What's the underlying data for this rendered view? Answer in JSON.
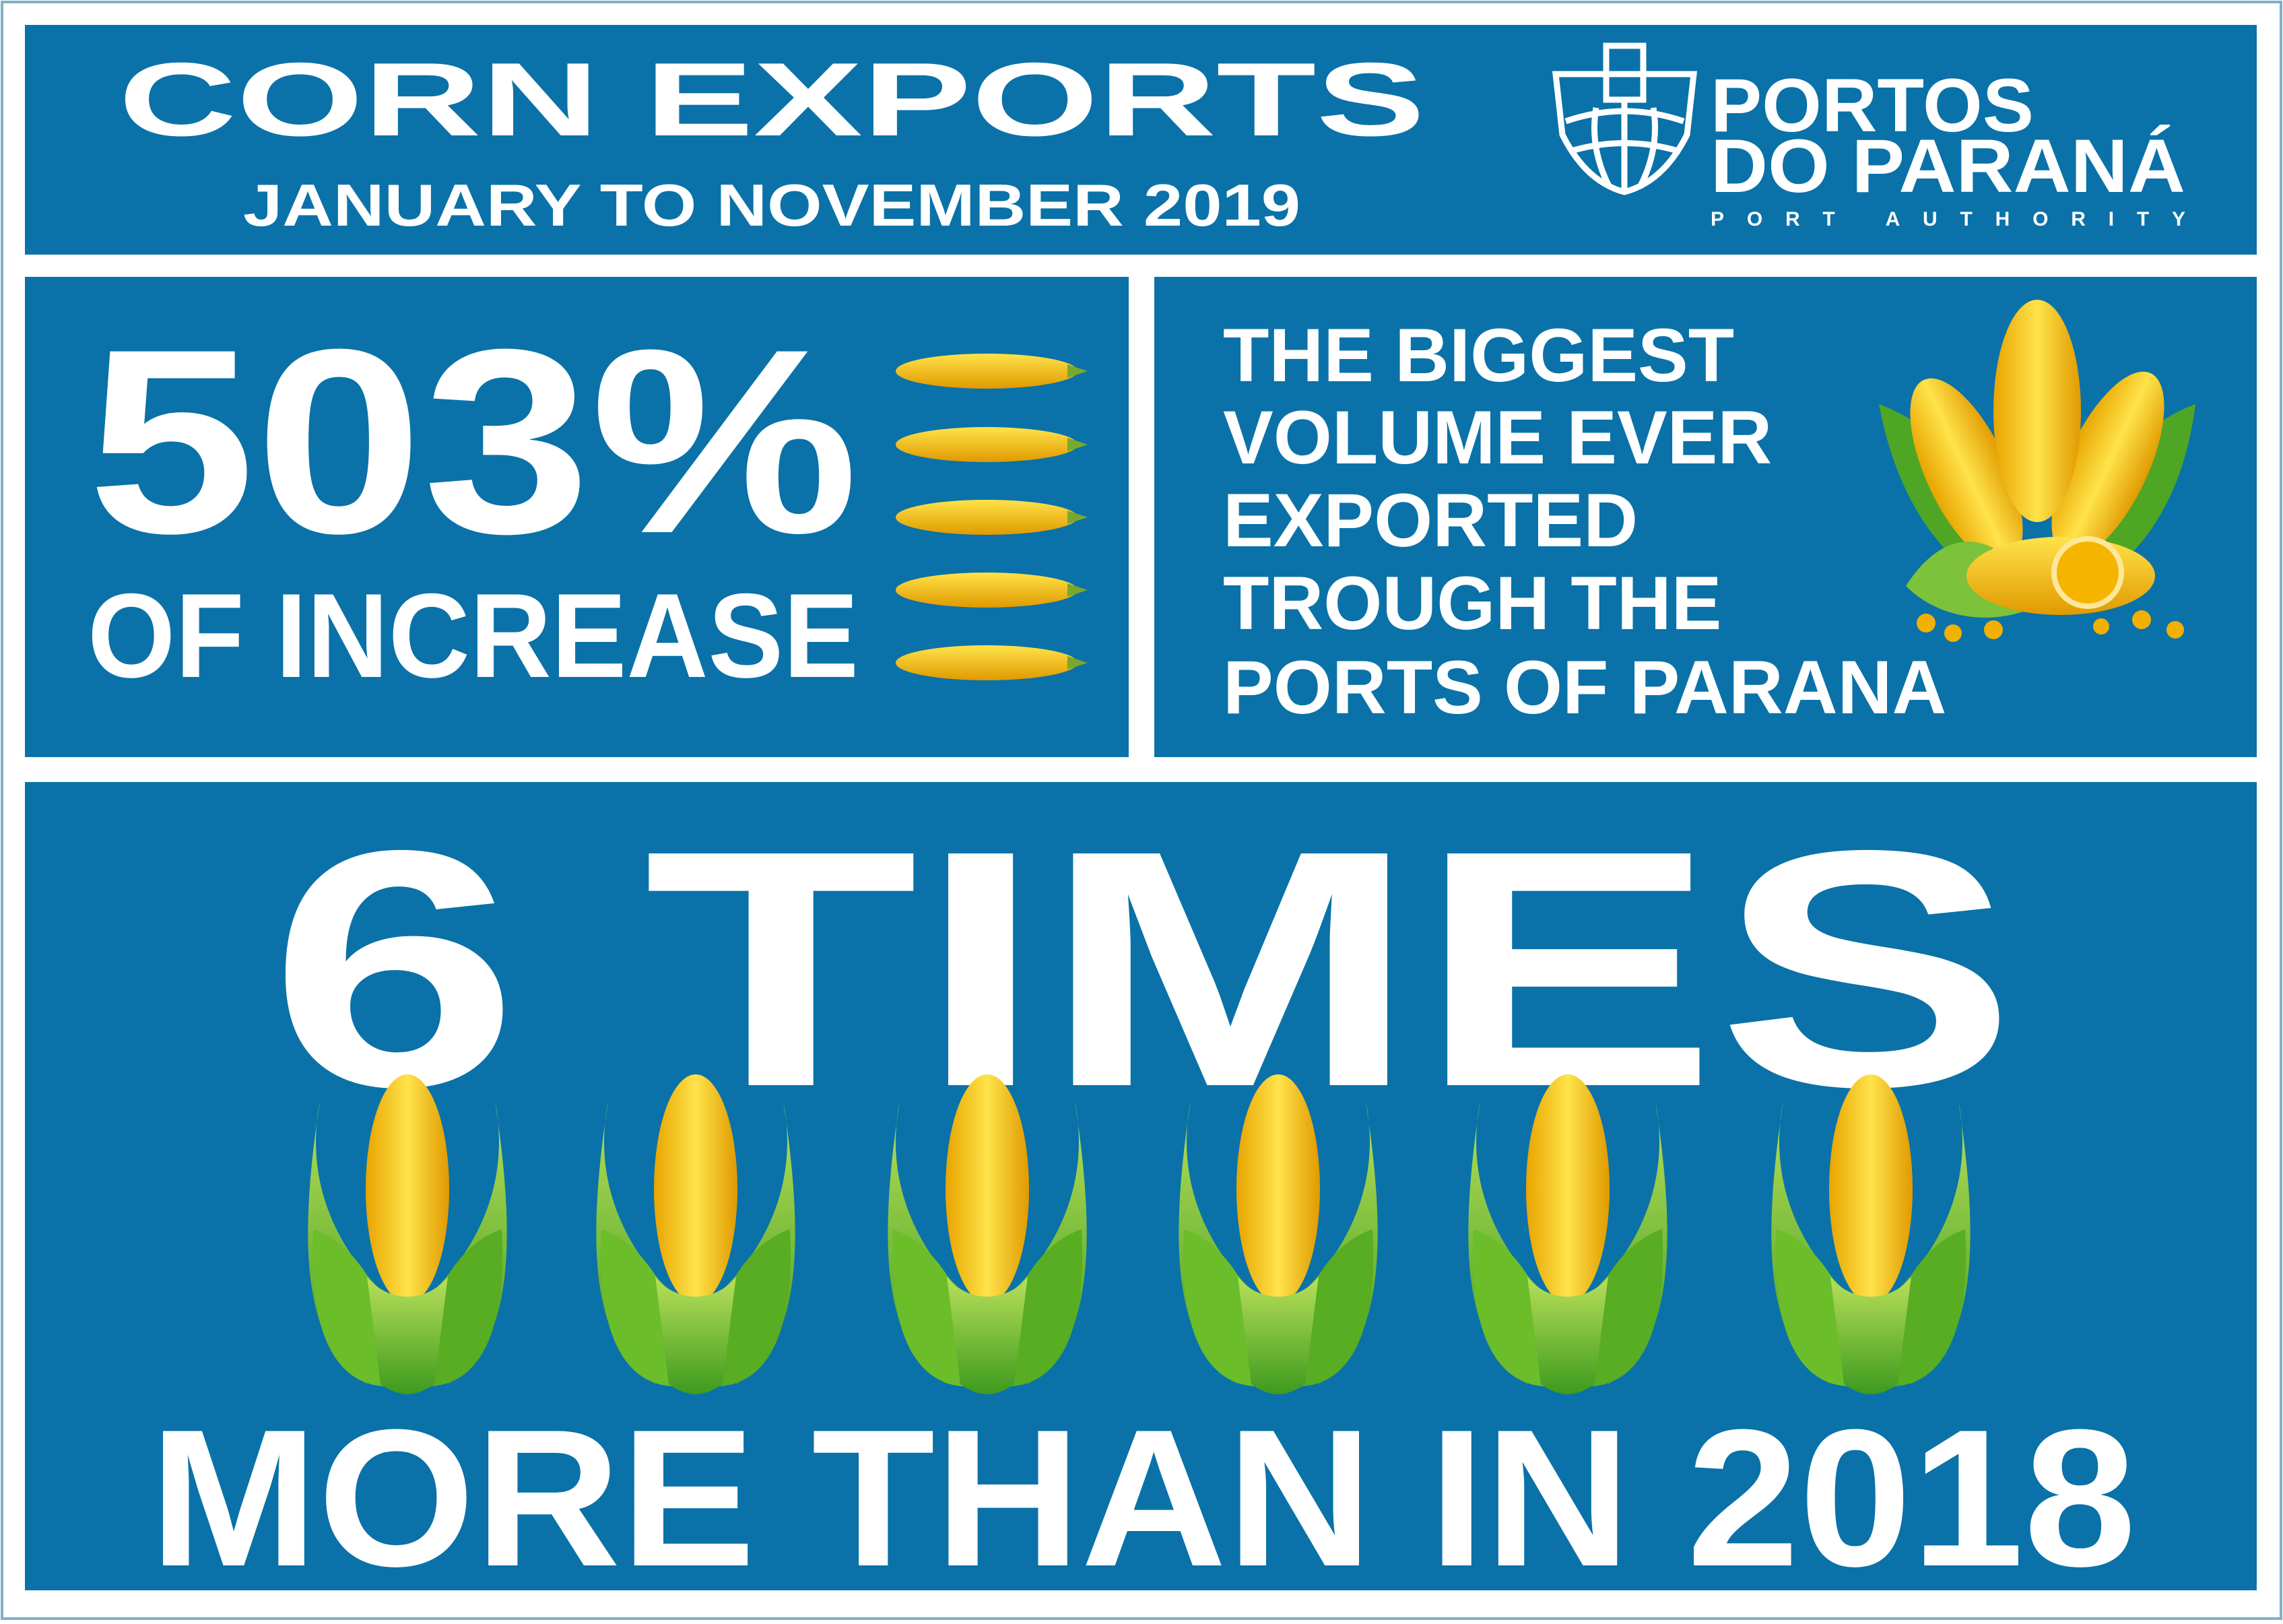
{
  "header": {
    "title": "CORN EXPORTS",
    "subtitle": "JANUARY TO NOVEMBER 2019",
    "logo": {
      "line1": "PORTOS",
      "line2": "DO PARANÁ",
      "tagline": "PORT AUTHORITY"
    }
  },
  "increase": {
    "value": "503%",
    "label": "OF INCREASE"
  },
  "record": {
    "lines": [
      "THE BIGGEST",
      "VOLUME EVER",
      "EXPORTED",
      "TROUGH THE",
      "PORTS OF PARANA"
    ]
  },
  "comparison": {
    "headline": "6 TIMES",
    "footer": "MORE THAN IN 2018"
  }
}
